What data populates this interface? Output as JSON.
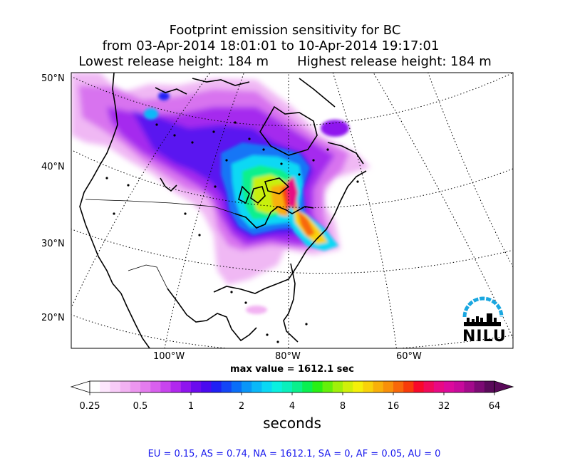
{
  "title": {
    "line1": "Footprint emission sensitivity for BC",
    "line2": "from 03-Apr-2014 18:01:01 to 10-Apr-2014 19:17:01",
    "lowest": "Lowest release height: 184 m",
    "highest": "Highest release height: 184 m"
  },
  "map": {
    "lat_labels": [
      "50°N",
      "40°N",
      "30°N",
      "20°N"
    ],
    "lon_labels": [
      "100°W",
      "80°W",
      "60°W"
    ],
    "max_value": "max value = 1612.1 sec"
  },
  "logo": {
    "text": "NILU",
    "arc_color": "#1aa7e0"
  },
  "colorbar": {
    "tick_labels": [
      "0.25",
      "0.5",
      "1",
      "2",
      "4",
      "8",
      "16",
      "32",
      "64"
    ],
    "unit": "seconds",
    "colors": [
      "#ffffff",
      "#fde6fd",
      "#f8ccf8",
      "#f2b2f2",
      "#ec96ef",
      "#e47cee",
      "#d860ee",
      "#c844ee",
      "#b128ee",
      "#8f14ee",
      "#6b0aee",
      "#4a0af0",
      "#2020f4",
      "#1446f6",
      "#0a6ef8",
      "#0a96f8",
      "#0ab8f8",
      "#0ad8f4",
      "#0af0e0",
      "#0af0bc",
      "#0af08c",
      "#0af050",
      "#28f014",
      "#64f00a",
      "#a0f00a",
      "#d0f00a",
      "#f4f00a",
      "#f8d20a",
      "#f8b00a",
      "#f8900a",
      "#f8680a",
      "#f83c0a",
      "#f80a2a",
      "#f00a5a",
      "#e80a84",
      "#dc0a9c",
      "#c80a9c",
      "#a40a8c",
      "#7c0a74",
      "#5a0a5a"
    ]
  },
  "regions": "EU = 0.15,  AS = 0.74,  NA = 1612.1,  SA = 0,  AF = 0.05,  AU = 0"
}
